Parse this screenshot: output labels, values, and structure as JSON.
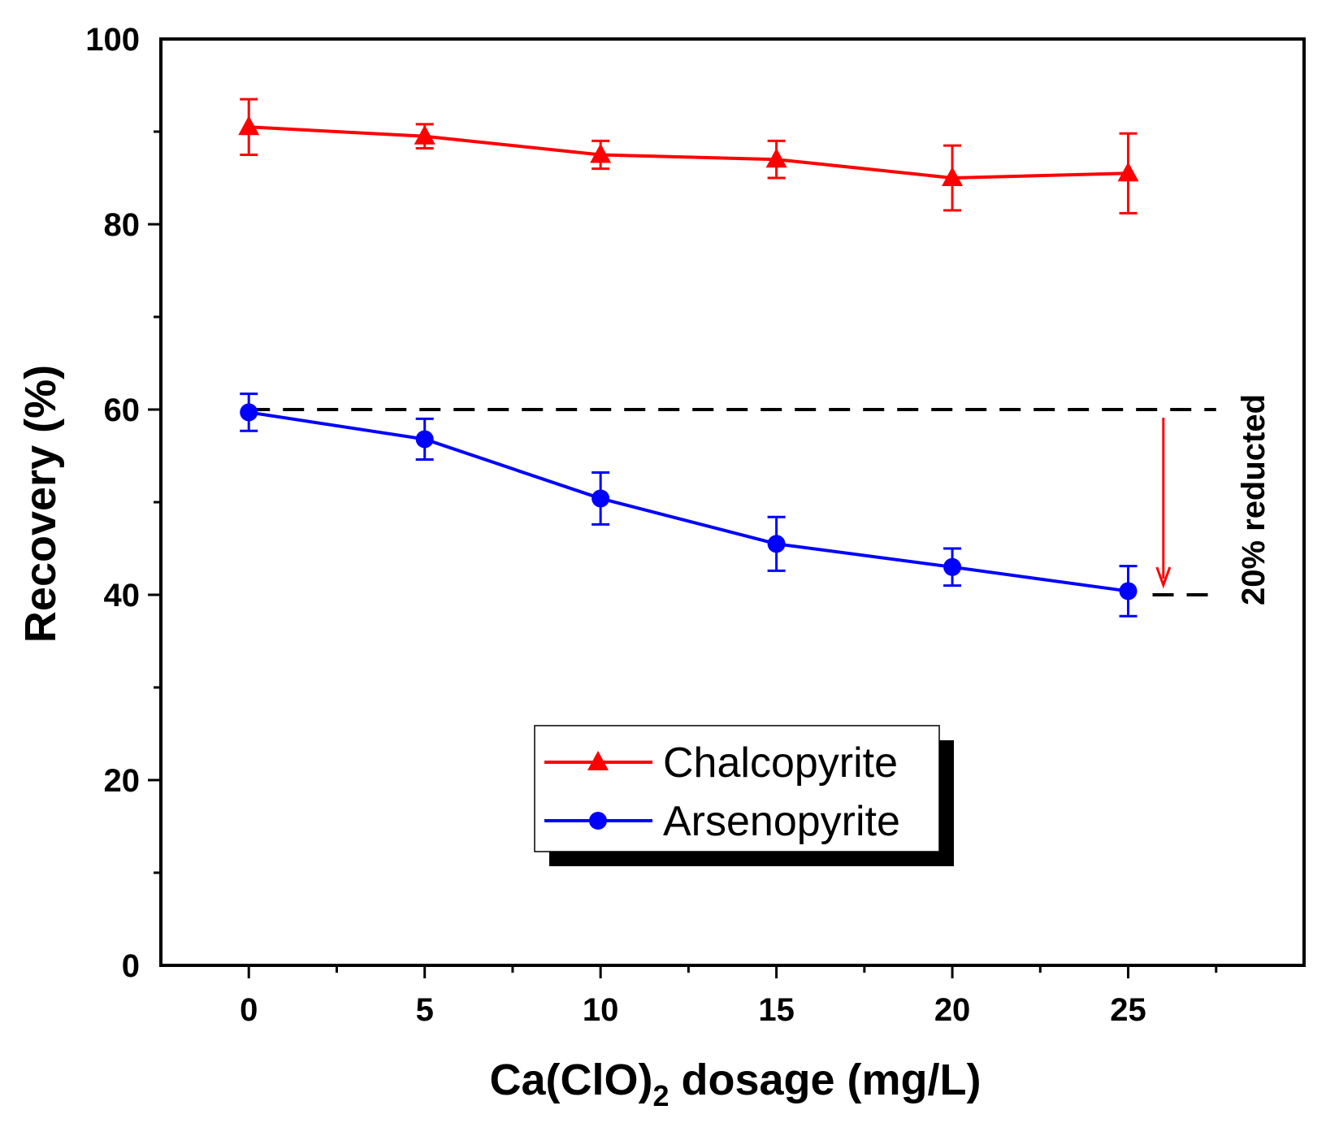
{
  "chart_data": {
    "type": "line",
    "title": "",
    "xlabel_main": "Ca(ClO)",
    "xlabel_sub": "2",
    "xlabel_rest": " dosage (mg/L)",
    "ylabel": "Recovery (%)",
    "xlim": [
      -2.5,
      30
    ],
    "ylim": [
      0,
      100
    ],
    "x_ticks": [
      0,
      5,
      10,
      15,
      20,
      25
    ],
    "x_tick_labels": [
      "0",
      "5",
      "10",
      "15",
      "20",
      "25"
    ],
    "y_ticks": [
      0,
      20,
      40,
      60,
      80,
      100
    ],
    "y_tick_labels": [
      "0",
      "20",
      "40",
      "60",
      "80",
      "100"
    ],
    "grid": false,
    "legend_position": "bottom-center",
    "series": [
      {
        "name": "Chalcopyrite",
        "color": "#ff0000",
        "marker": "triangle",
        "x": [
          0,
          5,
          10,
          15,
          20,
          25
        ],
        "y": [
          90.5,
          89.5,
          87.5,
          87.0,
          85.0,
          85.5
        ],
        "err_low": [
          3.0,
          1.3,
          1.5,
          2.0,
          3.5,
          4.3
        ],
        "err_high": [
          3.0,
          1.3,
          1.5,
          2.0,
          3.5,
          4.3
        ]
      },
      {
        "name": "Arsenopyrite",
        "color": "#0000ff",
        "marker": "circle",
        "x": [
          0,
          5,
          10,
          15,
          20,
          25
        ],
        "y": [
          59.7,
          56.8,
          50.4,
          45.5,
          43.0,
          40.4
        ],
        "err_low": [
          2.0,
          2.2,
          2.8,
          2.9,
          2.0,
          2.7
        ],
        "err_high": [
          2.0,
          2.2,
          2.8,
          2.9,
          2.0,
          2.7
        ]
      }
    ],
    "annotation": {
      "text": "20% reducted",
      "from_y": 60,
      "to_y": 40,
      "line_x_start_upper": 0,
      "line_x_start_lower": 25,
      "line_x_end": 27.5,
      "arrow_x": 26,
      "arrow_color": "#ff0000"
    }
  }
}
